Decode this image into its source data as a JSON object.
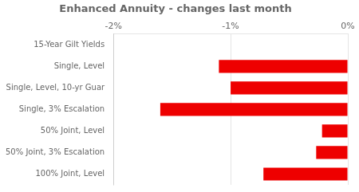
{
  "chart_data": {
    "type": "bar",
    "orientation": "horizontal",
    "title": "Enhanced Annuity - changes last month",
    "categories": [
      "15-Year Gilt Yields",
      "Single, Level",
      "Single, Level, 10-yr Guar",
      "Single, 3% Escalation",
      "50% Joint, Level",
      "50% Joint, 3% Escalation",
      "100% Joint, Level"
    ],
    "values": [
      0.0,
      -1.1,
      -1.0,
      -1.6,
      -0.22,
      -0.27,
      -0.72
    ],
    "color": "#ee0000",
    "xlim": [
      -2.0,
      0.0
    ],
    "xticks": [
      {
        "value": -2.0,
        "label": "-2%"
      },
      {
        "value": -1.0,
        "label": "-1%"
      },
      {
        "value": 0.0,
        "label": "0%"
      }
    ],
    "grid": true
  }
}
